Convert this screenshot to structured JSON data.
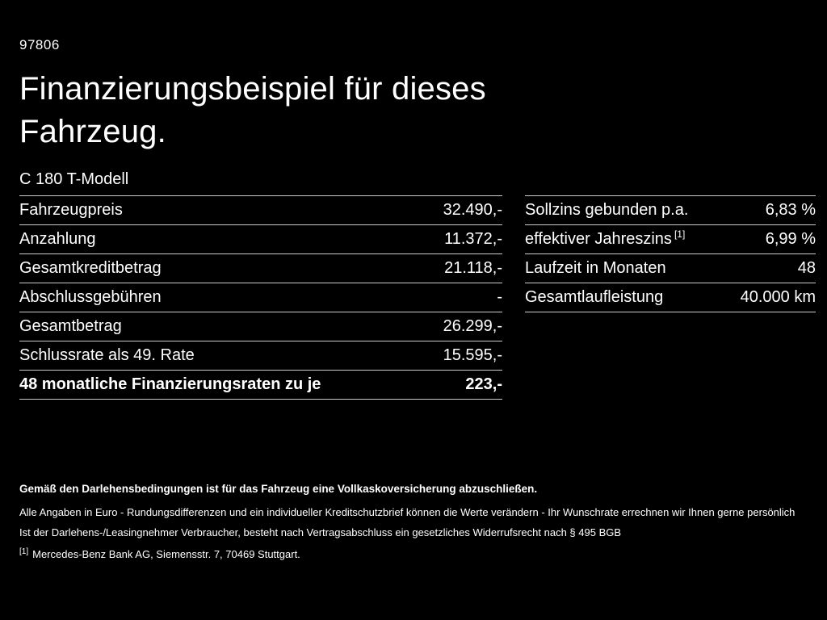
{
  "page": {
    "code": "97806",
    "title": "Finanzierungsbeispiel für dieses Fahrzeug.",
    "model": "C 180 T-Modell"
  },
  "finance_table": {
    "rows": [
      {
        "label": "Fahrzeugpreis",
        "value": "32.490,-"
      },
      {
        "label": "Anzahlung",
        "value": "11.372,-"
      },
      {
        "label": "Gesamtkreditbetrag",
        "value": "21.118,-"
      },
      {
        "label": "Abschlussgebühren",
        "value": "-"
      },
      {
        "label": "Gesamtbetrag",
        "value": "26.299,-"
      },
      {
        "label": "Schlussrate als 49. Rate",
        "value": "15.595,-"
      },
      {
        "label": "48 monatliche Finanzierungsraten zu je",
        "value": "223,-"
      }
    ]
  },
  "conditions_table": {
    "rows": [
      {
        "label": "Sollzins gebunden p.a.",
        "sup": "",
        "value": "6,83 %"
      },
      {
        "label": "effektiver Jahreszins",
        "sup": "[1]",
        "value": "6,99 %"
      },
      {
        "label": "Laufzeit in Monaten",
        "sup": "",
        "value": "48"
      },
      {
        "label": "Gesamtlaufleistung",
        "sup": "",
        "value": "40.000 km"
      }
    ]
  },
  "footer": {
    "insurance_note": "Gemäß den Darlehensbedingungen ist für das Fahrzeug eine Vollkaskoversicherung abzuschließen.",
    "disclaimer_1": "Alle Angaben in Euro - Rundungsdifferenzen und ein individueller Kreditschutzbrief können die Werte verändern - Ihr Wunschrate errechnen wir Ihnen gerne persönlich",
    "disclaimer_2": "Ist der Darlehens-/Leasingnehmer Verbraucher, besteht nach Vertragsabschluss ein gesetzliches Widerrufsrecht nach § 495 BGB",
    "footnote_marker": "[1]",
    "footnote_text": "Mercedes-Benz Bank AG, Siemensstr. 7, 70469 Stuttgart."
  },
  "colors": {
    "background": "#000000",
    "text": "#ffffff",
    "divider": "#cccccc"
  }
}
